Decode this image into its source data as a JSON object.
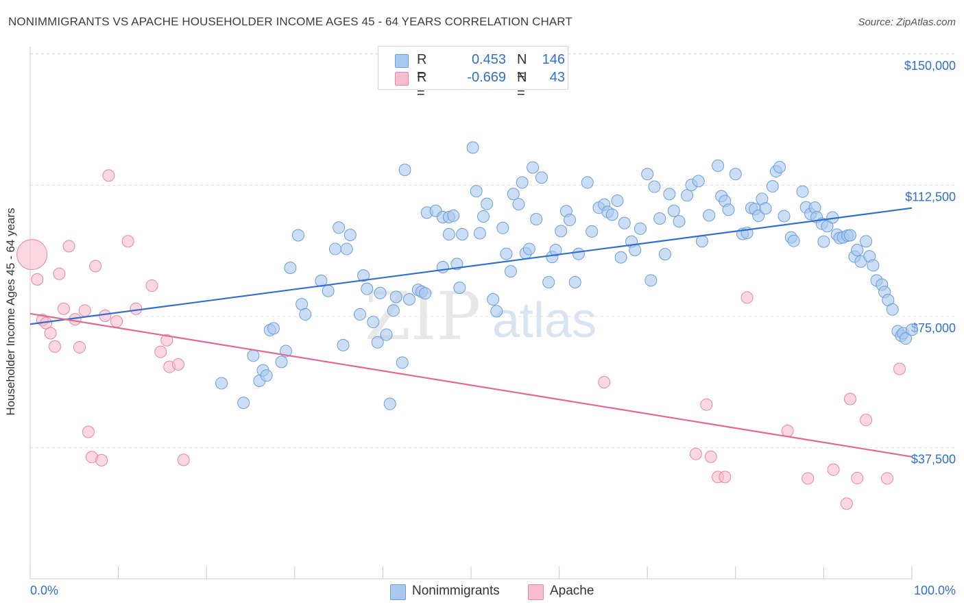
{
  "header": {
    "title": "NONIMMIGRANTS VS APACHE HOUSEHOLDER INCOME AGES 45 - 64 YEARS CORRELATION CHART",
    "source": "Source: ZipAtlas.com"
  },
  "legend_top": {
    "rows": [
      {
        "r_label": "R =",
        "r_value": "0.453",
        "n_label": "N =",
        "n_value": "146"
      },
      {
        "r_label": "R =",
        "r_value": "-0.669",
        "n_label": "N =",
        "n_value": "43"
      }
    ]
  },
  "legend_bottom": {
    "items": [
      {
        "label": "Nonimmigrants"
      },
      {
        "label": "Apache"
      }
    ]
  },
  "watermark": {
    "zip": "ZIP",
    "atlas": "atlas"
  },
  "colors": {
    "blue_fill": "#a9c8f0",
    "blue_stroke": "#6b9ed9",
    "blue_line": "#2f6fd1",
    "pink_fill": "#f7bccd",
    "pink_stroke": "#e7889f",
    "pink_line": "#e8658f",
    "grid": "#e3e3e3",
    "axis_text": "#2f6fd1"
  },
  "chart_data": {
    "type": "scatter",
    "title": "NONIMMIGRANTS VS APACHE HOUSEHOLDER INCOME AGES 45 - 64 YEARS CORRELATION CHART",
    "xlabel": "",
    "ylabel": "Householder Income Ages 45 - 64 years",
    "xlim": [
      0,
      100
    ],
    "ylim": [
      0,
      157500
    ],
    "x_tick_labels": [
      "0.0%",
      "100.0%"
    ],
    "y_ticks": [
      37500,
      75000,
      112500,
      150000
    ],
    "y_tick_labels": [
      "$37,500",
      "$75,000",
      "$112,500",
      "$150,000"
    ],
    "grid": true,
    "legend": "bottom",
    "series": [
      {
        "name": "Nonimmigrants",
        "r": 0.453,
        "n": 146,
        "trend": {
          "x": [
            0,
            100
          ],
          "y": [
            72800,
            106000
          ]
        },
        "points": [
          [
            21.7,
            55900
          ],
          [
            24.2,
            50300
          ],
          [
            25.3,
            63800
          ],
          [
            26,
            56600
          ],
          [
            26.4,
            59600
          ],
          [
            26.8,
            58100
          ],
          [
            27.2,
            71100
          ],
          [
            27.6,
            71600
          ],
          [
            28.5,
            62000
          ],
          [
            29.0,
            65100
          ],
          [
            29.5,
            88900
          ],
          [
            30.4,
            98200
          ],
          [
            30.8,
            78500
          ],
          [
            31.2,
            75600
          ],
          [
            33.0,
            85200
          ],
          [
            33.8,
            82300
          ],
          [
            34.6,
            94300
          ],
          [
            35.0,
            100400
          ],
          [
            35.5,
            66800
          ],
          [
            35.9,
            94300
          ],
          [
            36.3,
            98300
          ],
          [
            37.4,
            75600
          ],
          [
            37.8,
            86700
          ],
          [
            38.2,
            82900
          ],
          [
            38.9,
            73400
          ],
          [
            39.4,
            67600
          ],
          [
            39.7,
            81700
          ],
          [
            40.4,
            69800
          ],
          [
            40.8,
            50000
          ],
          [
            41.2,
            76700
          ],
          [
            41.5,
            80600
          ],
          [
            42.2,
            61800
          ],
          [
            42.5,
            116900
          ],
          [
            43.0,
            79900
          ],
          [
            44.0,
            82600
          ],
          [
            44.4,
            82100
          ],
          [
            44.8,
            81600
          ],
          [
            45.0,
            104700
          ],
          [
            46.0,
            105200
          ],
          [
            46.8,
            89100
          ],
          [
            46.8,
            103400
          ],
          [
            47.5,
            98500
          ],
          [
            47.5,
            103400
          ],
          [
            48.0,
            103800
          ],
          [
            48.4,
            90000
          ],
          [
            48.7,
            83200
          ],
          [
            49.0,
            98500
          ],
          [
            50.2,
            123300
          ],
          [
            50.6,
            110800
          ],
          [
            51.0,
            98800
          ],
          [
            51.4,
            103600
          ],
          [
            51.8,
            107200
          ],
          [
            52.5,
            79900
          ],
          [
            52.9,
            76500
          ],
          [
            53.6,
            100300
          ],
          [
            54.0,
            92900
          ],
          [
            54.5,
            87900
          ],
          [
            54.8,
            110000
          ],
          [
            55.4,
            107100
          ],
          [
            55.8,
            113300
          ],
          [
            56.2,
            93100
          ],
          [
            56.6,
            94300
          ],
          [
            57.0,
            117600
          ],
          [
            57.4,
            102800
          ],
          [
            58.0,
            114700
          ],
          [
            58.8,
            84800
          ],
          [
            59.2,
            92000
          ],
          [
            59.6,
            94000
          ],
          [
            60.2,
            99400
          ],
          [
            60.8,
            105100
          ],
          [
            61.2,
            102600
          ],
          [
            61.8,
            84800
          ],
          [
            62.2,
            92900
          ],
          [
            63.2,
            113300
          ],
          [
            63.7,
            99300
          ],
          [
            64.5,
            106100
          ],
          [
            65.1,
            107000
          ],
          [
            65.5,
            104900
          ],
          [
            66.0,
            104100
          ],
          [
            66.6,
            108100
          ],
          [
            67.0,
            91900
          ],
          [
            67.4,
            101700
          ],
          [
            68.2,
            96400
          ],
          [
            68.6,
            94000
          ],
          [
            69.2,
            100100
          ],
          [
            70.0,
            115700
          ],
          [
            70.4,
            85300
          ],
          [
            70.8,
            112100
          ],
          [
            71.4,
            103000
          ],
          [
            72.0,
            92800
          ],
          [
            72.5,
            110000
          ],
          [
            73.0,
            105200
          ],
          [
            73.6,
            102200
          ],
          [
            74.5,
            109600
          ],
          [
            75.0,
            112600
          ],
          [
            75.8,
            113700
          ],
          [
            76.2,
            96500
          ],
          [
            77.0,
            103900
          ],
          [
            78.0,
            118100
          ],
          [
            78.4,
            109400
          ],
          [
            78.8,
            108000
          ],
          [
            79.2,
            105500
          ],
          [
            80.0,
            115700
          ],
          [
            80.8,
            98600
          ],
          [
            81.3,
            98900
          ],
          [
            81.8,
            106000
          ],
          [
            82.2,
            105700
          ],
          [
            82.6,
            103800
          ],
          [
            83.0,
            108600
          ],
          [
            83.4,
            105900
          ],
          [
            84.2,
            112200
          ],
          [
            84.6,
            116500
          ],
          [
            85.0,
            117700
          ],
          [
            85.5,
            103700
          ],
          [
            86.3,
            97600
          ],
          [
            86.6,
            96600
          ],
          [
            87.6,
            110700
          ],
          [
            88.0,
            106200
          ],
          [
            88.5,
            104300
          ],
          [
            89.0,
            106100
          ],
          [
            89.2,
            103400
          ],
          [
            89.8,
            101500
          ],
          [
            90.0,
            96400
          ],
          [
            90.4,
            100800
          ],
          [
            91.0,
            103300
          ],
          [
            91.5,
            98400
          ],
          [
            91.8,
            97400
          ],
          [
            92.2,
            97600
          ],
          [
            92.7,
            98100
          ],
          [
            93.0,
            98200
          ],
          [
            93.5,
            92100
          ],
          [
            93.8,
            94000
          ],
          [
            94.2,
            90700
          ],
          [
            94.8,
            96500
          ],
          [
            95.2,
            92200
          ],
          [
            95.6,
            89600
          ],
          [
            96.0,
            85300
          ],
          [
            96.6,
            84100
          ],
          [
            96.9,
            82000
          ],
          [
            97.3,
            79700
          ],
          [
            97.8,
            77000
          ],
          [
            98.4,
            70800
          ],
          [
            98.8,
            69500
          ],
          [
            99.0,
            70200
          ],
          [
            99.3,
            68700
          ],
          [
            100.0,
            71200
          ]
        ]
      },
      {
        "name": "Apache",
        "r": -0.669,
        "n": 43,
        "trend": {
          "x": [
            0,
            100
          ],
          "y": [
            75800,
            34900
          ]
        },
        "points": [
          [
            0.2,
            92700
          ],
          [
            0.8,
            85600
          ],
          [
            1.4,
            74000
          ],
          [
            1.8,
            73100
          ],
          [
            2.3,
            70200
          ],
          [
            2.8,
            66400
          ],
          [
            3.3,
            87200
          ],
          [
            3.8,
            77200
          ],
          [
            4.4,
            95100
          ],
          [
            5.1,
            74200
          ],
          [
            5.6,
            66200
          ],
          [
            6.2,
            76700
          ],
          [
            6.6,
            42000
          ],
          [
            7.0,
            34800
          ],
          [
            7.4,
            89400
          ],
          [
            8.1,
            33900
          ],
          [
            8.5,
            75200
          ],
          [
            8.9,
            115300
          ],
          [
            9.8,
            73600
          ],
          [
            11.1,
            96500
          ],
          [
            12.0,
            77200
          ],
          [
            13.8,
            83800
          ],
          [
            14.8,
            64900
          ],
          [
            15.5,
            68200
          ],
          [
            15.8,
            60600
          ],
          [
            16.8,
            61300
          ],
          [
            17.4,
            34000
          ],
          [
            65.1,
            56200
          ],
          [
            75.5,
            35700
          ],
          [
            76.7,
            49800
          ],
          [
            77.2,
            34900
          ],
          [
            78.0,
            29100
          ],
          [
            78.8,
            29100
          ],
          [
            81.3,
            80400
          ],
          [
            85.9,
            42300
          ],
          [
            88.2,
            28700
          ],
          [
            91.1,
            31200
          ],
          [
            92.6,
            21500
          ],
          [
            93.0,
            51400
          ],
          [
            93.8,
            28800
          ],
          [
            94.8,
            45400
          ],
          [
            97.2,
            28700
          ],
          [
            98.6,
            60000
          ]
        ]
      }
    ]
  }
}
